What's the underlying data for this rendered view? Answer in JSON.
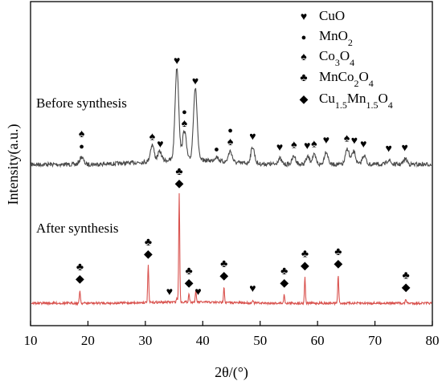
{
  "chart_data": {
    "type": "line",
    "xlabel": "2θ/(°)",
    "ylabel": "Intensity(a.u.)",
    "xlim": [
      10,
      80
    ],
    "x_ticks": [
      "10",
      "20",
      "30",
      "40",
      "50",
      "60",
      "70",
      "80"
    ],
    "grid": false,
    "legend_position": "top-right",
    "legend": [
      {
        "symbol": "heart",
        "glyph": "♥",
        "label": "CuO"
      },
      {
        "symbol": "dot",
        "glyph": "●",
        "label": "MnO2"
      },
      {
        "symbol": "spade",
        "glyph": "♠",
        "label": "Co3O4"
      },
      {
        "symbol": "club",
        "glyph": "♣",
        "label": "MnCo2O4"
      },
      {
        "symbol": "diamond",
        "glyph": "◆",
        "label": "Cu1.5Mn1.5O4"
      }
    ],
    "series": [
      {
        "name": "Before synthesis",
        "color": "#4a4a4a",
        "peaks": [
          {
            "x": 18.9,
            "h": 0.08
          },
          {
            "x": 31.2,
            "h": 0.18
          },
          {
            "x": 32.5,
            "h": 0.1
          },
          {
            "x": 35.5,
            "h": 1.0
          },
          {
            "x": 36.8,
            "h": 0.32
          },
          {
            "x": 38.7,
            "h": 0.78
          },
          {
            "x": 42.4,
            "h": 0.05
          },
          {
            "x": 44.8,
            "h": 0.12
          },
          {
            "x": 48.7,
            "h": 0.18
          },
          {
            "x": 53.4,
            "h": 0.06
          },
          {
            "x": 55.9,
            "h": 0.09
          },
          {
            "x": 58.3,
            "h": 0.08
          },
          {
            "x": 59.4,
            "h": 0.1
          },
          {
            "x": 61.5,
            "h": 0.14
          },
          {
            "x": 65.2,
            "h": 0.17
          },
          {
            "x": 66.3,
            "h": 0.14
          },
          {
            "x": 68.1,
            "h": 0.1
          },
          {
            "x": 72.4,
            "h": 0.05
          },
          {
            "x": 75.3,
            "h": 0.06
          }
        ]
      },
      {
        "name": "After synthesis",
        "color": "#d9534f",
        "peaks": [
          {
            "x": 18.6,
            "h": 0.12
          },
          {
            "x": 30.5,
            "h": 0.35
          },
          {
            "x": 35.5,
            "h": 0.04
          },
          {
            "x": 35.9,
            "h": 1.0
          },
          {
            "x": 37.6,
            "h": 0.08
          },
          {
            "x": 38.8,
            "h": 0.1
          },
          {
            "x": 43.7,
            "h": 0.15
          },
          {
            "x": 48.7,
            "h": 0.03
          },
          {
            "x": 54.2,
            "h": 0.08
          },
          {
            "x": 57.8,
            "h": 0.24
          },
          {
            "x": 63.6,
            "h": 0.26
          },
          {
            "x": 75.4,
            "h": 0.04
          }
        ]
      }
    ],
    "markers": {
      "before": [
        {
          "x": 18.9,
          "symbols": [
            "spade",
            "dot"
          ]
        },
        {
          "x": 31.2,
          "symbols": [
            "spade"
          ]
        },
        {
          "x": 32.6,
          "symbols": [
            "heart"
          ]
        },
        {
          "x": 35.5,
          "symbols": [
            "heart"
          ]
        },
        {
          "x": 36.8,
          "symbols": [
            "dot",
            "spade"
          ]
        },
        {
          "x": 38.7,
          "symbols": [
            "heart"
          ]
        },
        {
          "x": 42.4,
          "symbols": [
            "dot"
          ]
        },
        {
          "x": 44.8,
          "symbols": [
            "dot",
            "spade"
          ]
        },
        {
          "x": 48.7,
          "symbols": [
            "heart"
          ]
        },
        {
          "x": 53.4,
          "symbols": [
            "heart"
          ]
        },
        {
          "x": 55.9,
          "symbols": [
            "spade"
          ]
        },
        {
          "x": 58.2,
          "symbols": [
            "heart"
          ]
        },
        {
          "x": 59.4,
          "symbols": [
            "spade"
          ]
        },
        {
          "x": 61.5,
          "symbols": [
            "heart"
          ]
        },
        {
          "x": 65.1,
          "symbols": [
            "spade"
          ]
        },
        {
          "x": 66.4,
          "symbols": [
            "heart"
          ]
        },
        {
          "x": 68.0,
          "symbols": [
            "heart"
          ]
        },
        {
          "x": 72.4,
          "symbols": [
            "heart"
          ]
        },
        {
          "x": 75.2,
          "symbols": [
            "heart"
          ]
        }
      ],
      "after": [
        {
          "x": 18.6,
          "symbols": [
            "club",
            "diamond"
          ]
        },
        {
          "x": 30.5,
          "symbols": [
            "club",
            "diamond"
          ]
        },
        {
          "x": 34.2,
          "symbols": [
            "heart"
          ]
        },
        {
          "x": 35.9,
          "symbols": [
            "club",
            "diamond"
          ]
        },
        {
          "x": 37.6,
          "symbols": [
            "club",
            "diamond"
          ]
        },
        {
          "x": 39.2,
          "symbols": [
            "heart"
          ]
        },
        {
          "x": 43.7,
          "symbols": [
            "club",
            "diamond"
          ]
        },
        {
          "x": 48.7,
          "symbols": [
            "heart"
          ]
        },
        {
          "x": 54.2,
          "symbols": [
            "club",
            "diamond"
          ]
        },
        {
          "x": 57.8,
          "symbols": [
            "club",
            "diamond"
          ]
        },
        {
          "x": 63.6,
          "symbols": [
            "club",
            "diamond"
          ]
        },
        {
          "x": 75.4,
          "symbols": [
            "club",
            "diamond"
          ]
        }
      ]
    }
  }
}
